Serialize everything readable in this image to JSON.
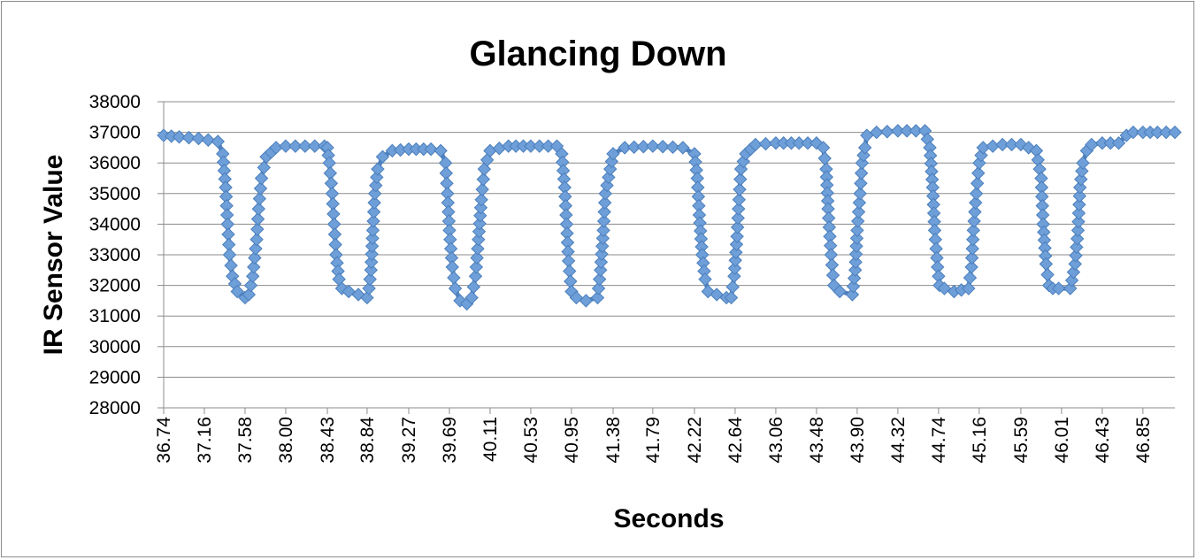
{
  "chart_data": {
    "type": "line",
    "title": "Glancing Down",
    "xlabel": "Seconds",
    "ylabel": "IR Sensor Value",
    "ylim": [
      28000,
      38000
    ],
    "ytick_labels": [
      "28000",
      "29000",
      "30000",
      "31000",
      "32000",
      "33000",
      "34000",
      "35000",
      "36000",
      "37000",
      "38000"
    ],
    "xtick_labels": [
      "36.74",
      "37.16",
      "37.58",
      "38.00",
      "38.43",
      "38.84",
      "39.27",
      "39.69",
      "40.11",
      "40.53",
      "40.95",
      "41.38",
      "41.79",
      "42.22",
      "42.64",
      "43.06",
      "43.48",
      "43.90",
      "44.32",
      "44.74",
      "45.16",
      "45.59",
      "46.01",
      "46.43",
      "46.85"
    ],
    "xlim": [
      36.74,
      47.18
    ],
    "grid": true,
    "legend": "none",
    "marker": "diamond",
    "series": [
      {
        "color": "#4f81bd",
        "x": [
          36.74,
          36.9,
          37.1,
          37.2,
          37.3,
          37.35,
          37.38,
          37.4,
          37.42,
          37.45,
          37.5,
          37.58,
          37.62,
          37.66,
          37.7,
          37.72,
          37.75,
          37.8,
          37.9,
          38.0,
          38.2,
          38.4,
          38.43,
          38.45,
          38.48,
          38.5,
          38.52,
          38.55,
          38.58,
          38.65,
          38.75,
          38.84,
          38.86,
          38.88,
          38.9,
          38.92,
          38.95,
          39.0,
          39.1,
          39.27,
          39.5,
          39.6,
          39.65,
          39.67,
          39.69,
          39.72,
          39.75,
          39.8,
          39.87,
          39.92,
          39.96,
          39.99,
          40.02,
          40.05,
          40.11,
          40.3,
          40.53,
          40.8,
          40.85,
          40.88,
          40.9,
          40.92,
          40.95,
          41.0,
          41.1,
          41.22,
          41.25,
          41.28,
          41.3,
          41.35,
          41.38,
          41.5,
          41.79,
          42.1,
          42.22,
          42.25,
          42.27,
          42.3,
          42.33,
          42.36,
          42.45,
          42.55,
          42.6,
          42.63,
          42.66,
          42.68,
          42.7,
          42.75,
          42.85,
          43.06,
          43.3,
          43.48,
          43.55,
          43.58,
          43.6,
          43.63,
          43.66,
          43.72,
          43.85,
          43.88,
          43.9,
          43.93,
          43.95,
          43.98,
          44.0,
          44.1,
          44.32,
          44.6,
          44.65,
          44.68,
          44.7,
          44.73,
          44.75,
          44.8,
          44.9,
          45.05,
          45.08,
          45.1,
          45.13,
          45.16,
          45.2,
          45.4,
          45.59,
          45.75,
          45.8,
          45.82,
          45.85,
          45.88,
          45.92,
          45.98,
          46.1,
          46.15,
          46.18,
          46.2,
          46.23,
          46.27,
          46.32,
          46.43,
          46.6,
          46.68,
          46.75,
          46.85,
          47.0,
          47.18
        ],
        "y": [
          36900,
          36850,
          36800,
          36750,
          36700,
          36300,
          35200,
          34000,
          33000,
          32300,
          31800,
          31600,
          31700,
          32300,
          33500,
          34500,
          35500,
          36200,
          36500,
          36550,
          36550,
          36550,
          36500,
          36000,
          35000,
          34000,
          33000,
          32200,
          31900,
          31800,
          31700,
          31600,
          31900,
          32500,
          33800,
          35000,
          35800,
          36200,
          36400,
          36450,
          36450,
          36400,
          36000,
          35000,
          33800,
          32600,
          31900,
          31500,
          31400,
          31600,
          32300,
          33500,
          34800,
          35800,
          36400,
          36550,
          36550,
          36550,
          36300,
          35200,
          34000,
          32800,
          31800,
          31600,
          31500,
          31600,
          32500,
          33800,
          35000,
          35800,
          36300,
          36500,
          36550,
          36500,
          36300,
          35500,
          34300,
          33000,
          32200,
          31800,
          31700,
          31600,
          31600,
          32300,
          33600,
          34800,
          35800,
          36300,
          36600,
          36650,
          36650,
          36650,
          36500,
          35800,
          34500,
          33000,
          32000,
          31800,
          31700,
          32500,
          33800,
          35000,
          36000,
          36500,
          36900,
          37000,
          37050,
          37050,
          36500,
          35200,
          33800,
          32600,
          32000,
          31900,
          31800,
          31900,
          32600,
          33800,
          35000,
          36000,
          36500,
          36600,
          36600,
          36400,
          35500,
          34000,
          32700,
          32000,
          31900,
          31900,
          31900,
          32700,
          33800,
          35200,
          36000,
          36400,
          36600,
          36650,
          36650,
          36900,
          37000,
          37000,
          37000,
          37000
        ]
      }
    ]
  }
}
